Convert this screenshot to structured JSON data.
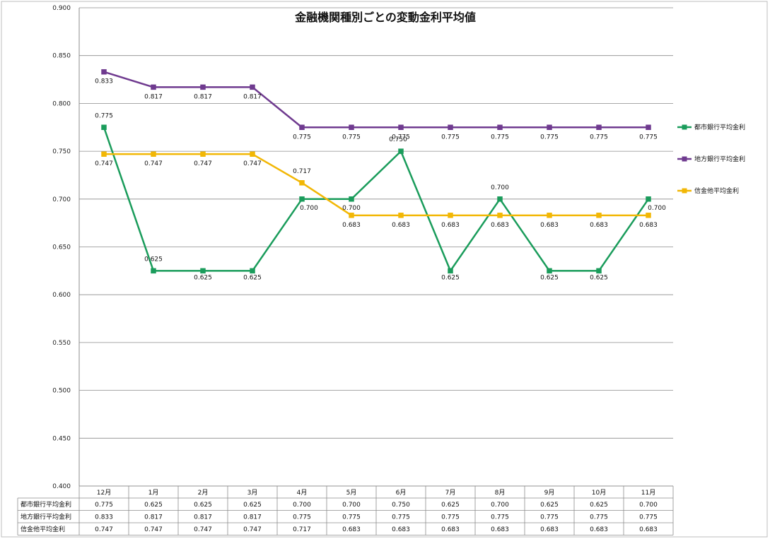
{
  "chart_data": {
    "type": "line",
    "title": "金融機関種別ごとの変動金利平均値",
    "categories": [
      "12月",
      "1月",
      "2月",
      "3月",
      "4月",
      "5月",
      "6月",
      "7月",
      "8月",
      "9月",
      "10月",
      "11月"
    ],
    "ylim": [
      0.4,
      0.9
    ],
    "yticks": [
      "0.400",
      "0.450",
      "0.500",
      "0.550",
      "0.600",
      "0.650",
      "0.700",
      "0.750",
      "0.800",
      "0.850",
      "0.900"
    ],
    "grid": true,
    "legend_position": "right",
    "series": [
      {
        "name": "都市銀行平均金利",
        "color": "#1a9c5b",
        "values": [
          0.775,
          0.625,
          0.625,
          0.625,
          0.7,
          0.7,
          0.75,
          0.625,
          0.7,
          0.625,
          0.625,
          0.7
        ],
        "labels": [
          "0.775",
          "0.625",
          "0.625",
          "0.625",
          "0.700",
          "0.700",
          "0.750",
          "0.625",
          "0.700",
          "0.625",
          "0.625",
          "0.700"
        ]
      },
      {
        "name": "地方銀行平均金利",
        "color": "#6f3a8f",
        "values": [
          0.833,
          0.817,
          0.817,
          0.817,
          0.775,
          0.775,
          0.775,
          0.775,
          0.775,
          0.775,
          0.775,
          0.775
        ],
        "labels": [
          "0.833",
          "0.817",
          "0.817",
          "0.817",
          "0.775",
          "0.775",
          "0.775",
          "0.775",
          "0.775",
          "0.775",
          "0.775",
          "0.775"
        ]
      },
      {
        "name": "信金他平均金利",
        "color": "#f2b705",
        "values": [
          0.747,
          0.747,
          0.747,
          0.747,
          0.717,
          0.683,
          0.683,
          0.683,
          0.683,
          0.683,
          0.683,
          0.683
        ],
        "labels": [
          "0.747",
          "0.747",
          "0.747",
          "0.747",
          "0.717",
          "0.683",
          "0.683",
          "0.683",
          "0.683",
          "0.683",
          "0.683",
          "0.683"
        ]
      }
    ]
  }
}
